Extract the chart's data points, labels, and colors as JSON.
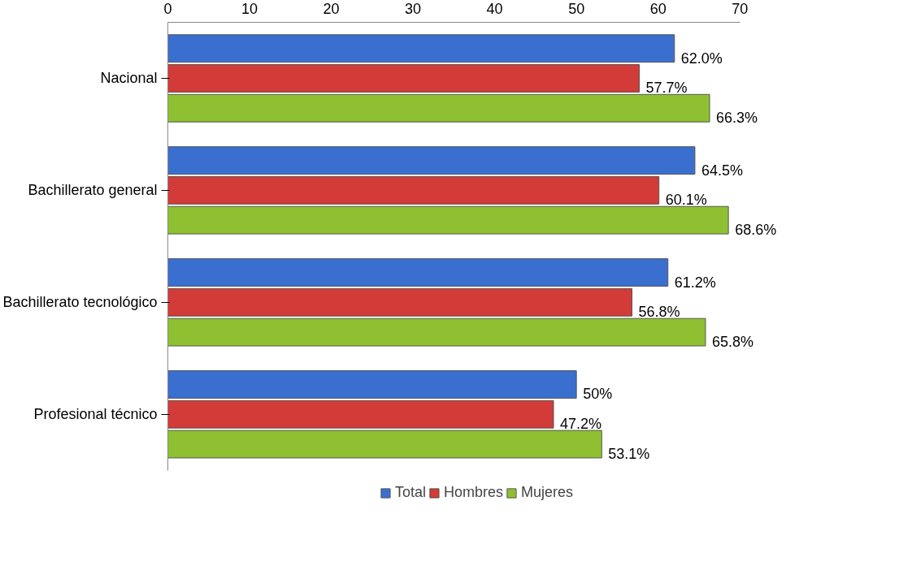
{
  "chart_data": {
    "type": "bar",
    "orientation": "horizontal",
    "categories": [
      "Nacional",
      "Bachillerato general",
      "Bachillerato tecnológico",
      "Profesional técnico"
    ],
    "series": [
      {
        "name": "Total",
        "color": "#3a6fd0",
        "values": [
          62.0,
          64.5,
          61.2,
          50
        ],
        "value_labels": [
          "62.0%",
          "64.5%",
          "61.2%",
          "50%"
        ]
      },
      {
        "name": "Hombres",
        "color": "#d23b37",
        "values": [
          57.7,
          60.1,
          56.8,
          47.2
        ],
        "value_labels": [
          "57.7%",
          "60.1%",
          "56.8%",
          "47.2%"
        ]
      },
      {
        "name": "Mujeres",
        "color": "#8fc031",
        "values": [
          66.3,
          68.6,
          65.8,
          53.1
        ],
        "value_labels": [
          "66.3%",
          "68.6%",
          "65.8%",
          "53.1%"
        ]
      }
    ],
    "xlim": [
      0,
      70
    ],
    "xticks": [
      0,
      10,
      20,
      30,
      40,
      50,
      60,
      70
    ],
    "grid": false,
    "legend": "bottom"
  }
}
